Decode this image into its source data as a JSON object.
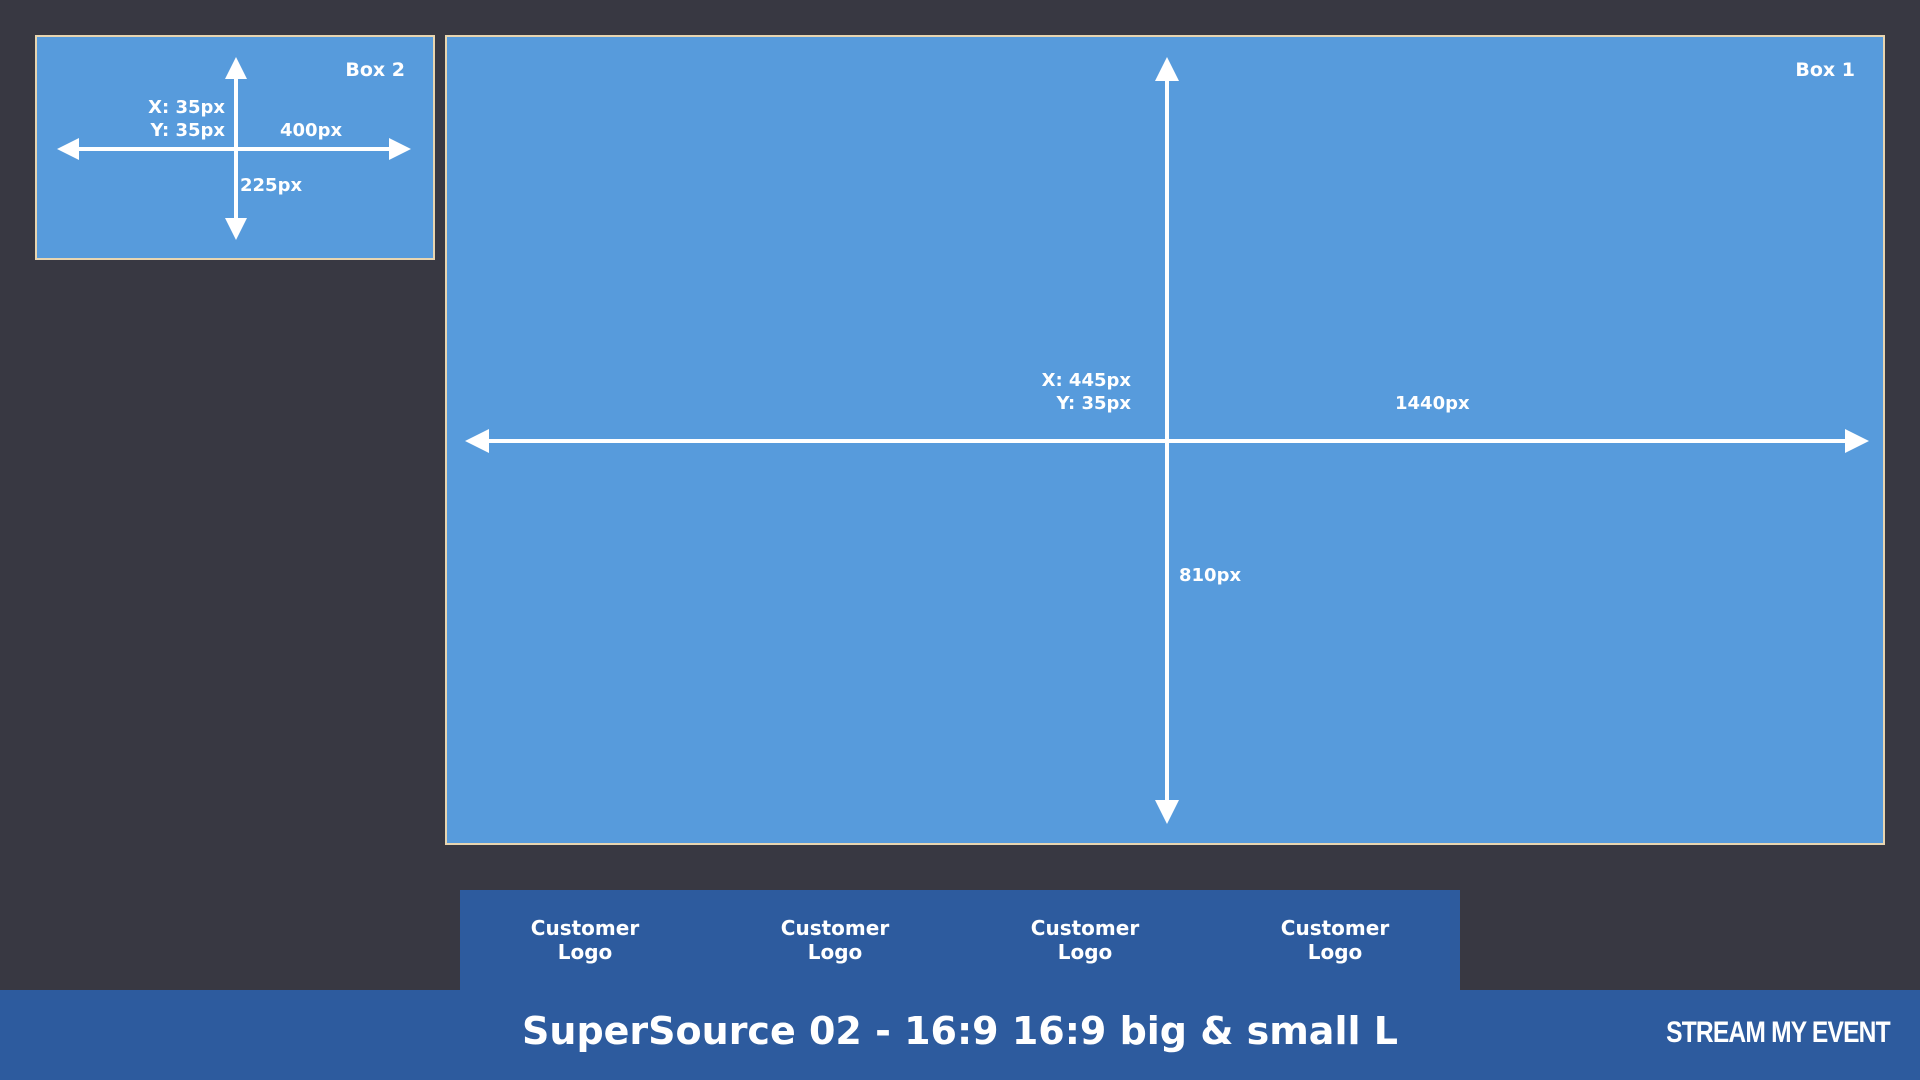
{
  "colors": {
    "background": "#383842",
    "box_fill": "#579bdc",
    "box_border": "#e8d5b0",
    "bar_fill": "#2d5b9e",
    "text": "#ffffff"
  },
  "box2": {
    "title": "Box 2",
    "x_label": "X: 35px",
    "y_label": "Y: 35px",
    "width_label": "400px",
    "height_label": "225px"
  },
  "box1": {
    "title": "Box 1",
    "x_label": "X: 445px",
    "y_label": "Y: 35px",
    "width_label": "1440px",
    "height_label": "810px"
  },
  "logos": [
    {
      "label": "Customer\nLogo"
    },
    {
      "label": "Customer\nLogo"
    },
    {
      "label": "Customer\nLogo"
    },
    {
      "label": "Customer\nLogo"
    }
  ],
  "footer": {
    "title": "SuperSource 02 - 16:9 16:9 big & small L",
    "brand": "STREAM MY EVENT"
  }
}
